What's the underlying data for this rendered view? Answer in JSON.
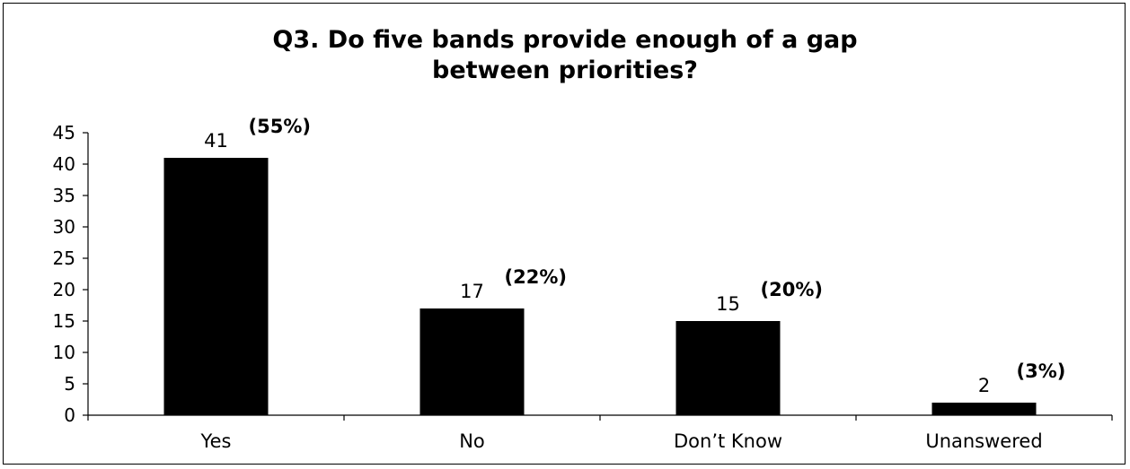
{
  "chart_data": {
    "type": "bar",
    "title_lines": [
      "Q3. Do five bands provide enough of a gap",
      "between priorities?"
    ],
    "categories": [
      "Yes",
      "No",
      "Don’t Know",
      "Unanswered"
    ],
    "values": [
      41,
      17,
      15,
      2
    ],
    "value_labels": [
      "41",
      "17",
      "15",
      "2"
    ],
    "percent_labels": [
      "(55%)",
      "(22%)",
      "(20%)",
      "(3%)"
    ],
    "ylim": [
      0,
      45
    ],
    "y_ticks": [
      "0",
      "5",
      "10",
      "15",
      "20",
      "25",
      "30",
      "35",
      "40",
      "45"
    ],
    "xlabel": "",
    "ylabel": "",
    "grid": false,
    "legend": "none",
    "bar_color": "#000000"
  }
}
